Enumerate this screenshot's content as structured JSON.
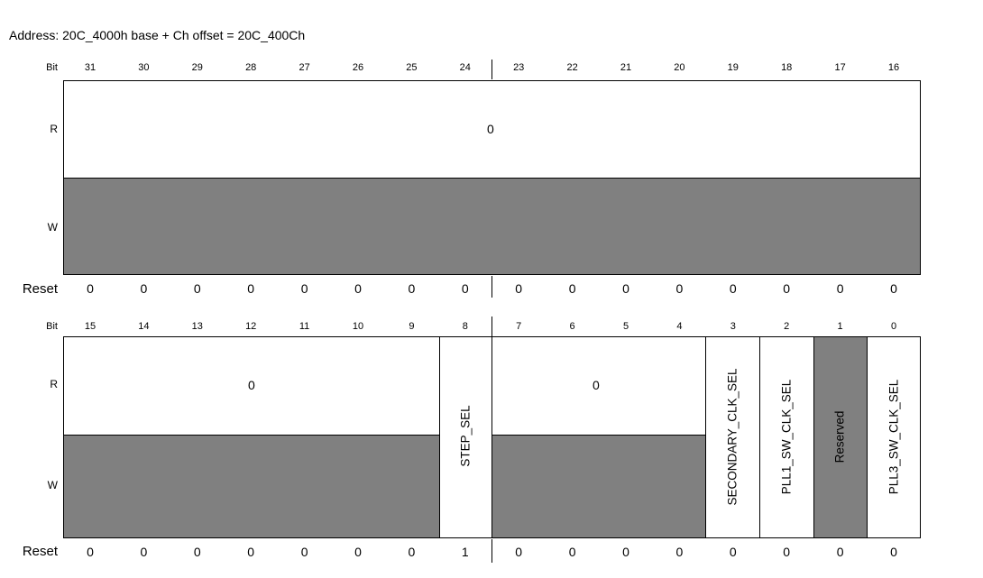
{
  "address": "Address: 20C_4000h base + Ch offset = 20C_400Ch",
  "labels": {
    "bit": "Bit",
    "r": "R",
    "w": "W",
    "reset": "Reset"
  },
  "upper": {
    "bits": [
      "31",
      "30",
      "29",
      "28",
      "27",
      "26",
      "25",
      "24",
      "23",
      "22",
      "21",
      "20",
      "19",
      "18",
      "17",
      "16"
    ],
    "read_value": "0",
    "reset": [
      "0",
      "0",
      "0",
      "0",
      "0",
      "0",
      "0",
      "0",
      "0",
      "0",
      "0",
      "0",
      "0",
      "0",
      "0",
      "0"
    ]
  },
  "lower": {
    "bits": [
      "15",
      "14",
      "13",
      "12",
      "11",
      "10",
      "9",
      "8",
      "7",
      "6",
      "5",
      "4",
      "3",
      "2",
      "1",
      "0"
    ],
    "read_value_a": "0",
    "read_value_b": "0",
    "fields": {
      "step_sel": "STEP_SEL",
      "secondary_clk_sel": "SECONDARY_CLK_SEL",
      "pll1_sw_clk_sel": "PLL1_SW_CLK_SEL",
      "reserved": "Reserved",
      "pll3_sw_clk_sel": "PLL3_SW_CLK_SEL"
    },
    "reset": [
      "0",
      "0",
      "0",
      "0",
      "0",
      "0",
      "0",
      "1",
      "0",
      "0",
      "0",
      "0",
      "0",
      "0",
      "0",
      "0"
    ]
  },
  "colors": {
    "reserved_fill": "#808080",
    "readonly_fill": "#808080"
  }
}
